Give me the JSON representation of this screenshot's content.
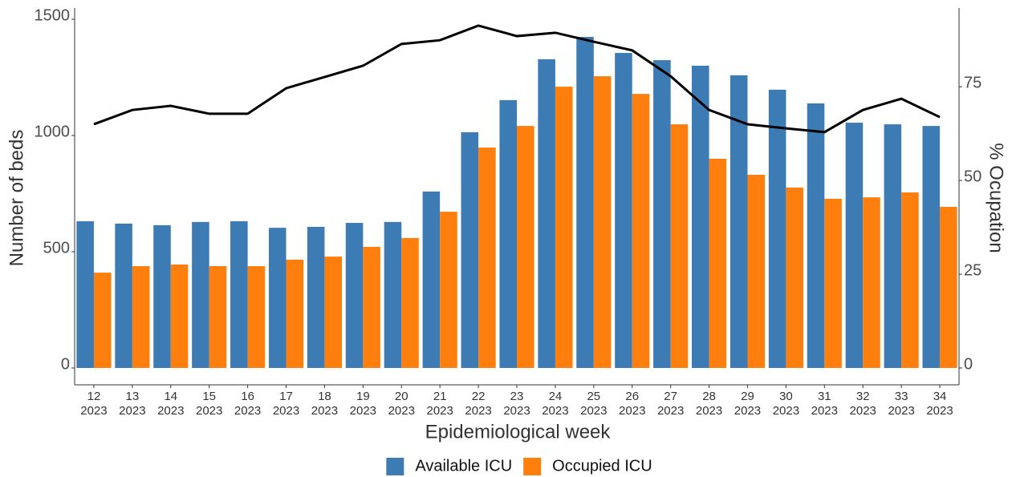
{
  "chart_data": {
    "type": "bar_line",
    "x_label": "Epidemiological week",
    "y_label": "Number of beds",
    "y2_label": "% Ocupation",
    "categories": [
      [
        "12",
        "2023"
      ],
      [
        "13",
        "2023"
      ],
      [
        "14",
        "2023"
      ],
      [
        "15",
        "2023"
      ],
      [
        "16",
        "2023"
      ],
      [
        "17",
        "2023"
      ],
      [
        "18",
        "2023"
      ],
      [
        "19",
        "2023"
      ],
      [
        "20",
        "2023"
      ],
      [
        "21",
        "2023"
      ],
      [
        "22",
        "2023"
      ],
      [
        "23",
        "2023"
      ],
      [
        "24",
        "2023"
      ],
      [
        "25",
        "2023"
      ],
      [
        "26",
        "2023"
      ],
      [
        "27",
        "2023"
      ],
      [
        "28",
        "2023"
      ],
      [
        "29",
        "2023"
      ],
      [
        "30",
        "2023"
      ],
      [
        "31",
        "2023"
      ],
      [
        "32",
        "2023"
      ],
      [
        "33",
        "2023"
      ],
      [
        "34",
        "2023"
      ]
    ],
    "series": [
      {
        "name": "Available ICU",
        "type": "bar",
        "color": "#3d7bb5",
        "values": [
          631,
          621,
          614,
          628,
          631,
          603,
          607,
          624,
          628,
          759,
          1014,
          1152,
          1328,
          1424,
          1355,
          1324,
          1300,
          1259,
          1197,
          1138,
          1055,
          1048,
          1041
        ]
      },
      {
        "name": "Occupied ICU",
        "type": "bar",
        "color": "#ff7f0e",
        "values": [
          410,
          438,
          445,
          438,
          438,
          466,
          479,
          521,
          559,
          672,
          948,
          1041,
          1210,
          1255,
          1179,
          1048,
          900,
          831,
          776,
          728,
          734,
          755,
          693
        ]
      },
      {
        "type": "line",
        "axis": "y2",
        "color": "#000000",
        "values": [
          65,
          68.8,
          69.9,
          67.8,
          67.8,
          74.6,
          77.6,
          80.6,
          86.4,
          87.4,
          91.3,
          88.5,
          89.4,
          87.0,
          84.7,
          77.8,
          68.8,
          65,
          63.9,
          62.9,
          68.8,
          71.8,
          66.9
        ]
      }
    ],
    "ylim": [
      0,
      1500
    ],
    "yticks": [
      0,
      500,
      1000,
      1500
    ],
    "y2lim": [
      0,
      93
    ],
    "y2ticks": [
      0,
      25,
      50,
      75
    ],
    "legend": "bottom"
  }
}
